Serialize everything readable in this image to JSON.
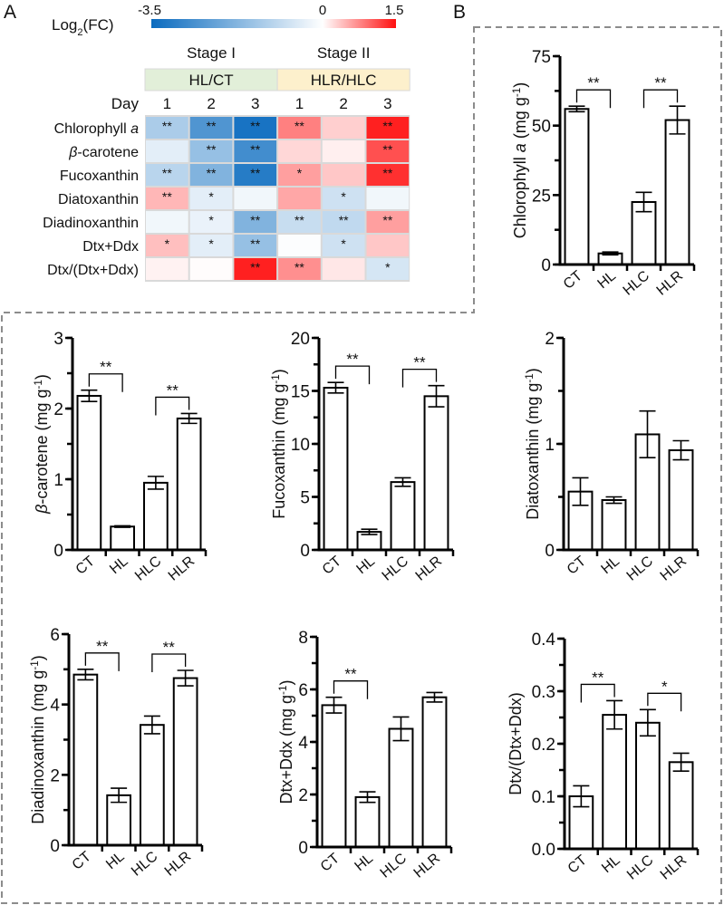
{
  "panel_labels": {
    "a": "A",
    "b": "B"
  },
  "colors": {
    "neg": "#0a6bbf",
    "mid": "#ffffff",
    "pos": "#ff1010",
    "stage1_bg": "#e2efd9",
    "stage2_bg": "#fdf0cc",
    "grid": "#d9d9d9"
  },
  "chart_data": [
    {
      "id": "heatmap",
      "type": "heatmap",
      "colorbar": {
        "label": "Log",
        "label_sub": "2",
        "label_end": "(FC)",
        "min": -3.5,
        "mid": 0,
        "max": 1.5,
        "min_label": "-3.5",
        "mid_label": "0",
        "max_label": "1.5"
      },
      "stages": [
        {
          "name": "Stage I",
          "comparison": "HL/CT"
        },
        {
          "name": "Stage II",
          "comparison": "HLR/HLC"
        }
      ],
      "day_label": "Day",
      "days": [
        "1",
        "2",
        "3",
        "1",
        "2",
        "3"
      ],
      "rows": [
        {
          "label": [
            {
              "t": "Chlorophyll "
            },
            {
              "t": "a",
              "i": true
            }
          ],
          "values": [
            -1.2,
            -2.5,
            -3.3,
            0.8,
            0.3,
            1.4
          ],
          "sig": [
            "**",
            "**",
            "**",
            "**",
            "",
            "**"
          ]
        },
        {
          "label": [
            {
              "t": "β",
              "i": true
            },
            {
              "t": "-carotene"
            }
          ],
          "values": [
            -0.4,
            -1.5,
            -2.7,
            0.25,
            0.1,
            1.1
          ],
          "sig": [
            "",
            "**",
            "**",
            "",
            "",
            "**"
          ]
        },
        {
          "label": [
            {
              "t": "Fucoxanthin"
            }
          ],
          "values": [
            -1.0,
            -1.8,
            -3.1,
            0.6,
            0.35,
            1.3
          ],
          "sig": [
            "**",
            "**",
            "**",
            "*",
            "",
            "**"
          ]
        },
        {
          "label": [
            {
              "t": "Diatoxanthin"
            }
          ],
          "values": [
            0.45,
            -0.4,
            -0.2,
            0.55,
            -0.7,
            -0.2
          ],
          "sig": [
            "**",
            "*",
            "",
            "",
            "*",
            ""
          ]
        },
        {
          "label": [
            {
              "t": "Diadinoxanthin"
            }
          ],
          "values": [
            -0.2,
            -0.3,
            -1.8,
            -0.8,
            -0.9,
            0.6
          ],
          "sig": [
            "",
            "*",
            "**",
            "**",
            "**",
            "**"
          ]
        },
        {
          "label": [
            {
              "t": "Dtx+Ddx"
            }
          ],
          "values": [
            0.4,
            -0.4,
            -1.5,
            -0.05,
            -0.7,
            0.35
          ],
          "sig": [
            "*",
            "*",
            "**",
            "",
            "*",
            ""
          ]
        },
        {
          "label": [
            {
              "t": "Dtx/(Dtx+Ddx)"
            }
          ],
          "values": [
            0.08,
            0.02,
            1.4,
            0.7,
            0.15,
            -0.6
          ],
          "sig": [
            "",
            "",
            "**",
            "**",
            "",
            "*"
          ]
        }
      ]
    },
    {
      "id": "chla",
      "type": "bar",
      "categories": [
        "CT",
        "HL",
        "HLC",
        "HLR"
      ],
      "values": [
        56,
        4,
        22.5,
        52
      ],
      "errors": [
        1,
        0.5,
        3.5,
        5
      ],
      "ylabel": [
        {
          "t": "Chlorophyll "
        },
        {
          "t": "a",
          "i": true
        },
        {
          "t": " (mg g"
        },
        {
          "t": "-1",
          "sup": true
        },
        {
          "t": ")"
        }
      ],
      "ylim": [
        0,
        75
      ],
      "yticks": [
        0,
        25,
        50,
        75
      ],
      "ytick_labels": [
        "0",
        "25",
        "50",
        "75"
      ],
      "minor_tick": 12.5,
      "significance": [
        {
          "from": 0,
          "to": 1,
          "label": "**"
        },
        {
          "from": 2,
          "to": 3,
          "label": "**"
        }
      ]
    },
    {
      "id": "bcar",
      "type": "bar",
      "categories": [
        "CT",
        "HL",
        "HLC",
        "HLR"
      ],
      "values": [
        2.18,
        0.33,
        0.95,
        1.86
      ],
      "errors": [
        0.08,
        0.01,
        0.09,
        0.07
      ],
      "ylabel": [
        {
          "t": "β",
          "i": true
        },
        {
          "t": "-carotene (mg g"
        },
        {
          "t": "-1",
          "sup": true
        },
        {
          "t": ")"
        }
      ],
      "ylim": [
        0,
        3
      ],
      "yticks": [
        0,
        1,
        2,
        3
      ],
      "ytick_labels": [
        "0",
        "1",
        "2",
        "3"
      ],
      "minor_tick": 0.5,
      "significance": [
        {
          "from": 0,
          "to": 1,
          "label": "**"
        },
        {
          "from": 2,
          "to": 3,
          "label": "**"
        }
      ]
    },
    {
      "id": "fuco",
      "type": "bar",
      "categories": [
        "CT",
        "HL",
        "HLC",
        "HLR"
      ],
      "values": [
        15.3,
        1.7,
        6.4,
        14.5
      ],
      "errors": [
        0.5,
        0.25,
        0.4,
        1.0
      ],
      "ylabel": [
        {
          "t": "Fucoxanthin (mg g"
        },
        {
          "t": "-1",
          "sup": true
        },
        {
          "t": ")"
        }
      ],
      "ylim": [
        0,
        20
      ],
      "yticks": [
        0,
        5,
        10,
        15,
        20
      ],
      "ytick_labels": [
        "0",
        "5",
        "10",
        "15",
        "20"
      ],
      "minor_tick": 2.5,
      "significance": [
        {
          "from": 0,
          "to": 1,
          "label": "**"
        },
        {
          "from": 2,
          "to": 3,
          "label": "**"
        }
      ]
    },
    {
      "id": "diat",
      "type": "bar",
      "categories": [
        "CT",
        "HL",
        "HLC",
        "HLR"
      ],
      "values": [
        0.55,
        0.47,
        1.09,
        0.94
      ],
      "errors": [
        0.13,
        0.03,
        0.22,
        0.09
      ],
      "ylabel": [
        {
          "t": "Diatoxanthin (mg g"
        },
        {
          "t": "-1",
          "sup": true
        },
        {
          "t": ")"
        }
      ],
      "ylim": [
        0,
        2
      ],
      "yticks": [
        0,
        1,
        2
      ],
      "ytick_labels": [
        "0",
        "1",
        "2"
      ],
      "minor_tick": 0.5,
      "significance": []
    },
    {
      "id": "diad",
      "type": "bar",
      "categories": [
        "CT",
        "HL",
        "HLC",
        "HLR"
      ],
      "values": [
        4.85,
        1.42,
        3.42,
        4.75
      ],
      "errors": [
        0.15,
        0.2,
        0.25,
        0.22
      ],
      "ylabel": [
        {
          "t": "Diadinoxanthin (mg g"
        },
        {
          "t": "-1",
          "sup": true
        },
        {
          "t": ")"
        }
      ],
      "ylim": [
        0,
        6
      ],
      "yticks": [
        0,
        2,
        4,
        6
      ],
      "ytick_labels": [
        "0",
        "2",
        "4",
        "6"
      ],
      "minor_tick": 1,
      "significance": [
        {
          "from": 0,
          "to": 1,
          "label": "**"
        },
        {
          "from": 2,
          "to": 3,
          "label": "**"
        }
      ]
    },
    {
      "id": "dtxddx",
      "type": "bar",
      "categories": [
        "CT",
        "HL",
        "HLC",
        "HLR"
      ],
      "values": [
        5.4,
        1.9,
        4.5,
        5.7
      ],
      "errors": [
        0.3,
        0.2,
        0.45,
        0.18
      ],
      "ylabel": [
        {
          "t": "Dtx+Ddx (mg g"
        },
        {
          "t": "-1",
          "sup": true
        },
        {
          "t": ")"
        }
      ],
      "ylim": [
        0,
        8
      ],
      "yticks": [
        0,
        2,
        4,
        6,
        8
      ],
      "ytick_labels": [
        "0",
        "2",
        "4",
        "6",
        "8"
      ],
      "minor_tick": 1,
      "significance": [
        {
          "from": 0,
          "to": 1,
          "label": "**"
        }
      ]
    },
    {
      "id": "ratio",
      "type": "bar",
      "categories": [
        "CT",
        "HL",
        "HLC",
        "HLR"
      ],
      "values": [
        0.1,
        0.255,
        0.24,
        0.165
      ],
      "errors": [
        0.02,
        0.027,
        0.025,
        0.017
      ],
      "ylabel": [
        {
          "t": "Dtx/(Dtx+Ddx)"
        }
      ],
      "ylim": [
        0,
        0.4
      ],
      "yticks": [
        0,
        0.1,
        0.2,
        0.3,
        0.4
      ],
      "ytick_labels": [
        "0.0",
        "0.1",
        "0.2",
        "0.3",
        "0.4"
      ],
      "minor_tick": 0.05,
      "significance": [
        {
          "from": 0,
          "to": 1,
          "label": "**"
        },
        {
          "from": 2,
          "to": 3,
          "label": "*"
        }
      ]
    }
  ]
}
